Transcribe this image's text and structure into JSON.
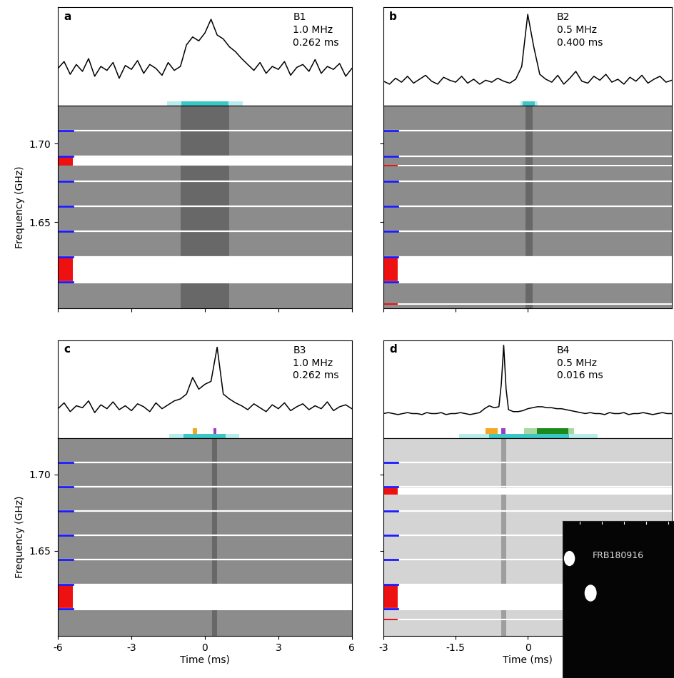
{
  "chart_data": [
    {
      "type": "line",
      "panel": "a",
      "annotations": [
        "B1",
        "1.0 MHz",
        "0.262 ms"
      ],
      "color": "#000000",
      "xlim": [
        -6,
        6
      ],
      "ylim": [
        0,
        1
      ],
      "tick_labels": false,
      "x": [
        -6,
        -5.75,
        -5.5,
        -5.25,
        -5,
        -4.75,
        -4.5,
        -4.25,
        -4,
        -3.75,
        -3.5,
        -3.25,
        -3,
        -2.75,
        -2.5,
        -2.25,
        -2,
        -1.75,
        -1.5,
        -1.25,
        -1,
        -0.75,
        -0.5,
        -0.25,
        0,
        0.25,
        0.5,
        0.75,
        1,
        1.25,
        1.5,
        1.75,
        2,
        2.25,
        2.5,
        2.75,
        3,
        3.25,
        3.5,
        3.75,
        4,
        4.25,
        4.5,
        4.75,
        5,
        5.25,
        5.5,
        5.75,
        6
      ],
      "values": [
        0.38,
        0.45,
        0.32,
        0.42,
        0.35,
        0.48,
        0.3,
        0.4,
        0.36,
        0.44,
        0.28,
        0.41,
        0.37,
        0.46,
        0.33,
        0.42,
        0.38,
        0.31,
        0.44,
        0.36,
        0.4,
        0.62,
        0.7,
        0.66,
        0.74,
        0.88,
        0.72,
        0.68,
        0.6,
        0.55,
        0.48,
        0.42,
        0.36,
        0.44,
        0.33,
        0.4,
        0.37,
        0.45,
        0.31,
        0.39,
        0.42,
        0.35,
        0.47,
        0.33,
        0.4,
        0.37,
        0.43,
        0.3,
        0.38
      ],
      "burst_windows": [
        {
          "start": -1.55,
          "end": 1.55,
          "color": "#b8ecec"
        },
        {
          "start": -0.95,
          "end": 0.95,
          "color": "#3cc6c6"
        }
      ],
      "component_windows": []
    },
    {
      "type": "dynamic_spectrum",
      "xlim": [
        -6,
        6
      ],
      "xticks": [
        -6,
        -3,
        0,
        3,
        6
      ],
      "ylim": [
        1.595,
        1.724
      ],
      "yticks": [
        {
          "value": 1.65,
          "label": "1.65"
        },
        {
          "value": 1.7,
          "label": "1.70"
        }
      ],
      "y_label": "Frequency (GHz)",
      "tick_labels": "y",
      "color": "#8c8c8c",
      "subband_edges": [
        1.708,
        1.692,
        1.676,
        1.66,
        1.644,
        1.628,
        1.612
      ],
      "masked": [
        [
          1.686,
          1.692
        ],
        [
          1.611,
          1.628
        ]
      ],
      "signal": [
        -1,
        1
      ]
    },
    {
      "type": "line",
      "panel": "b",
      "annotations": [
        "B2",
        "0.5 MHz",
        "0.400 ms"
      ],
      "color": "#000000",
      "xlim": [
        -3,
        3
      ],
      "ylim": [
        0,
        1
      ],
      "tick_labels": false,
      "x": [
        -3,
        -2.875,
        -2.75,
        -2.625,
        -2.5,
        -2.375,
        -2.25,
        -2.125,
        -2,
        -1.875,
        -1.75,
        -1.625,
        -1.5,
        -1.375,
        -1.25,
        -1.125,
        -1,
        -0.875,
        -0.75,
        -0.625,
        -0.5,
        -0.375,
        -0.25,
        -0.125,
        0,
        0.125,
        0.25,
        0.375,
        0.5,
        0.625,
        0.75,
        0.875,
        1,
        1.125,
        1.25,
        1.375,
        1.5,
        1.625,
        1.75,
        1.875,
        2,
        2.125,
        2.25,
        2.375,
        2.5,
        2.625,
        2.75,
        2.875,
        3
      ],
      "values": [
        0.25,
        0.22,
        0.28,
        0.24,
        0.3,
        0.23,
        0.27,
        0.31,
        0.25,
        0.22,
        0.29,
        0.26,
        0.24,
        0.3,
        0.23,
        0.27,
        0.22,
        0.26,
        0.24,
        0.28,
        0.25,
        0.23,
        0.27,
        0.4,
        0.93,
        0.6,
        0.32,
        0.27,
        0.24,
        0.31,
        0.22,
        0.28,
        0.35,
        0.25,
        0.23,
        0.3,
        0.26,
        0.32,
        0.24,
        0.27,
        0.22,
        0.29,
        0.25,
        0.31,
        0.23,
        0.27,
        0.3,
        0.24,
        0.26
      ],
      "burst_windows": [
        {
          "start": -0.15,
          "end": 0.2,
          "color": "#b8ecec"
        },
        {
          "start": -0.1,
          "end": 0.15,
          "color": "#3cc6c6"
        }
      ],
      "component_windows": []
    },
    {
      "type": "dynamic_spectrum",
      "xlim": [
        -3,
        3
      ],
      "xticks": [
        -3,
        -1.5,
        0
      ],
      "ylim": [
        1.595,
        1.724
      ],
      "yticks": [
        {
          "value": 1.65,
          "label": "1.65"
        },
        {
          "value": 1.7,
          "label": "1.70"
        }
      ],
      "tick_labels": false,
      "color": "#8c8c8c",
      "subband_edges": [
        1.708,
        1.692,
        1.676,
        1.66,
        1.644,
        1.628,
        1.612
      ],
      "masked": [
        [
          1.6855,
          1.6865
        ],
        [
          1.611,
          1.628
        ],
        [
          1.5975,
          1.5985
        ]
      ],
      "signal": [
        -0.05,
        0.1
      ]
    },
    {
      "type": "line",
      "panel": "c",
      "annotations": [
        "B3",
        "1.0 MHz",
        "0.262 ms"
      ],
      "color": "#000000",
      "xlim": [
        -6,
        6
      ],
      "ylim": [
        0,
        1
      ],
      "tick_labels": false,
      "x": [
        -6,
        -5.75,
        -5.5,
        -5.25,
        -5,
        -4.75,
        -4.5,
        -4.25,
        -4,
        -3.75,
        -3.5,
        -3.25,
        -3,
        -2.75,
        -2.5,
        -2.25,
        -2,
        -1.75,
        -1.5,
        -1.25,
        -1,
        -0.75,
        -0.5,
        -0.25,
        0,
        0.25,
        0.5,
        0.75,
        1,
        1.25,
        1.5,
        1.75,
        2,
        2.25,
        2.5,
        2.75,
        3,
        3.25,
        3.5,
        3.75,
        4,
        4.25,
        4.5,
        4.75,
        5,
        5.25,
        5.5,
        5.75,
        6
      ],
      "values": [
        0.3,
        0.36,
        0.27,
        0.33,
        0.31,
        0.38,
        0.26,
        0.34,
        0.3,
        0.37,
        0.29,
        0.33,
        0.28,
        0.35,
        0.32,
        0.27,
        0.36,
        0.3,
        0.34,
        0.38,
        0.4,
        0.45,
        0.62,
        0.5,
        0.55,
        0.58,
        0.93,
        0.45,
        0.4,
        0.36,
        0.33,
        0.29,
        0.35,
        0.31,
        0.27,
        0.34,
        0.3,
        0.36,
        0.28,
        0.32,
        0.35,
        0.29,
        0.33,
        0.3,
        0.37,
        0.28,
        0.32,
        0.34,
        0.3
      ],
      "burst_windows": [
        {
          "start": -1.45,
          "end": 1.4,
          "color": "#b8ecec"
        },
        {
          "start": -0.87,
          "end": 0.85,
          "color": "#3cc6c6"
        }
      ],
      "component_windows": [
        {
          "start": -0.49,
          "end": -0.33,
          "color": "#f5a623"
        },
        {
          "start": 0.35,
          "end": 0.47,
          "color": "#9b3fc0"
        }
      ]
    },
    {
      "type": "dynamic_spectrum",
      "xlim": [
        -6,
        6
      ],
      "xticks": [
        -6,
        -3,
        0,
        3,
        6
      ],
      "ylim": [
        1.594,
        1.724
      ],
      "yticks": [
        {
          "value": 1.65,
          "label": "1.65"
        },
        {
          "value": 1.7,
          "label": "1.70"
        }
      ],
      "x_label": "Time (ms)",
      "y_label": "Frequency (GHz)",
      "tick_labels": true,
      "color": "#8c8c8c",
      "subband_edges": [
        1.708,
        1.692,
        1.676,
        1.66,
        1.644,
        1.628,
        1.612
      ],
      "masked": [
        [
          1.611,
          1.628
        ]
      ],
      "signal": [
        0.3,
        0.5
      ]
    },
    {
      "type": "line",
      "panel": "d",
      "annotations": [
        "B4",
        "0.5 MHz",
        "0.016 ms"
      ],
      "color": "#000000",
      "xlim": [
        -3,
        3
      ],
      "ylim": [
        0,
        1
      ],
      "tick_labels": false,
      "x": [
        -3,
        -2.9,
        -2.8,
        -2.7,
        -2.6,
        -2.5,
        -2.4,
        -2.3,
        -2.2,
        -2.1,
        -2,
        -1.9,
        -1.8,
        -1.7,
        -1.6,
        -1.5,
        -1.4,
        -1.3,
        -1.2,
        -1.1,
        -1,
        -0.9,
        -0.8,
        -0.7,
        -0.6,
        -0.55,
        -0.5,
        -0.45,
        -0.4,
        -0.3,
        -0.2,
        -0.1,
        0,
        0.1,
        0.2,
        0.3,
        0.4,
        0.5,
        0.6,
        0.7,
        0.8,
        0.9,
        1,
        1.1,
        1.2,
        1.3,
        1.4,
        1.5,
        1.6,
        1.7,
        1.8,
        1.9,
        2,
        2.1,
        2.2,
        2.3,
        2.4,
        2.5,
        2.6,
        2.7,
        2.8,
        2.9,
        3
      ],
      "values": [
        0.25,
        0.26,
        0.25,
        0.24,
        0.25,
        0.26,
        0.25,
        0.25,
        0.24,
        0.26,
        0.25,
        0.25,
        0.26,
        0.24,
        0.25,
        0.25,
        0.26,
        0.25,
        0.24,
        0.25,
        0.26,
        0.3,
        0.33,
        0.31,
        0.32,
        0.55,
        0.95,
        0.5,
        0.29,
        0.27,
        0.27,
        0.28,
        0.3,
        0.31,
        0.32,
        0.32,
        0.31,
        0.31,
        0.3,
        0.3,
        0.29,
        0.28,
        0.27,
        0.26,
        0.25,
        0.26,
        0.25,
        0.25,
        0.24,
        0.26,
        0.25,
        0.25,
        0.26,
        0.24,
        0.25,
        0.25,
        0.26,
        0.25,
        0.24,
        0.25,
        0.26,
        0.25,
        0.25
      ],
      "burst_windows": [
        {
          "start": -1.43,
          "end": 1.45,
          "color": "#b8ecec"
        },
        {
          "start": -0.8,
          "end": 0.86,
          "color": "#3cc6c6"
        }
      ],
      "component_windows": [
        {
          "start": -0.88,
          "end": -0.62,
          "color": "#f5a623"
        },
        {
          "start": -0.55,
          "end": -0.46,
          "color": "#9b3fc0"
        },
        {
          "start": -0.07,
          "end": 0.96,
          "color": "#a8d8a0"
        },
        {
          "start": 0.19,
          "end": 0.84,
          "color": "#1a8a1a"
        }
      ]
    },
    {
      "type": "dynamic_spectrum",
      "xlim": [
        -3,
        3
      ],
      "xticks": [
        -3,
        -1.5,
        0
      ],
      "ylim": [
        1.594,
        1.724
      ],
      "yticks": [
        {
          "value": 1.65,
          "label": "1.65"
        },
        {
          "value": 1.7,
          "label": "1.70"
        }
      ],
      "x_label": "Time (ms)",
      "tick_labels": "x",
      "color": "#d4d4d4",
      "subband_edges": [
        1.708,
        1.692,
        1.676,
        1.66,
        1.644,
        1.628,
        1.612
      ],
      "masked": [
        [
          1.687,
          1.691
        ],
        [
          1.611,
          1.628
        ],
        [
          1.6045,
          1.6055
        ]
      ],
      "signal": [
        -0.55,
        -0.45
      ],
      "inset_label": "FRB180916"
    }
  ]
}
